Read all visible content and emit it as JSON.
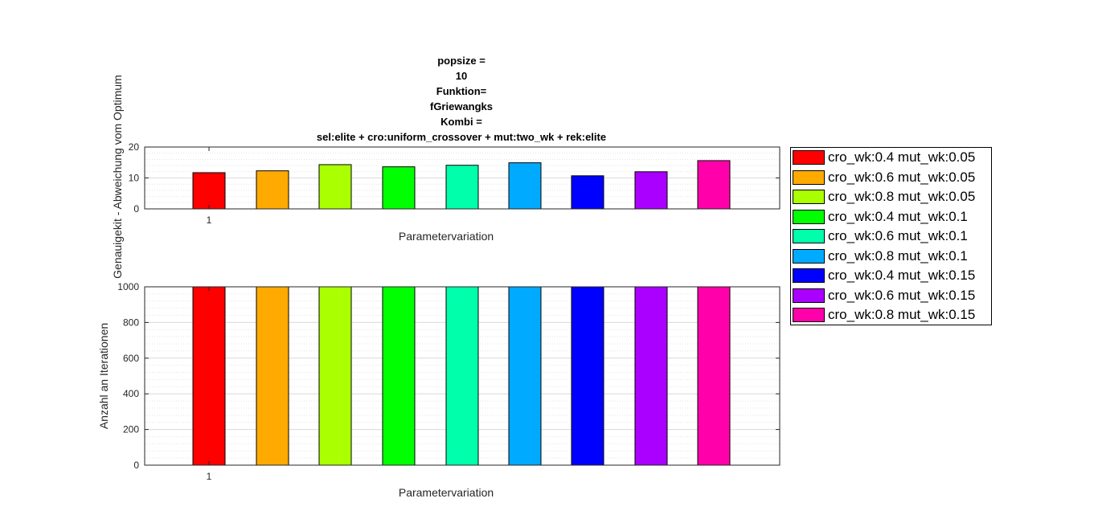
{
  "title_lines": [
    "popsize =",
    "10",
    "Funktion=",
    "fGriewangks",
    "Kombi =",
    "sel:elite + cro:uniform_crossover +  mut:two_wk +  rek:elite"
  ],
  "legend": {
    "placement": "right",
    "entries": [
      {
        "label": "cro_wk:0.4 mut_wk:0.05",
        "color": "#ff0000"
      },
      {
        "label": "cro_wk:0.6 mut_wk:0.05",
        "color": "#ffaa00"
      },
      {
        "label": "cro_wk:0.8 mut_wk:0.05",
        "color": "#aaff00"
      },
      {
        "label": "cro_wk:0.4 mut_wk:0.1",
        "color": "#00ff00"
      },
      {
        "label": "cro_wk:0.6 mut_wk:0.1",
        "color": "#00ffaa"
      },
      {
        "label": "cro_wk:0.8 mut_wk:0.1",
        "color": "#00aaff"
      },
      {
        "label": "cro_wk:0.4 mut_wk:0.15",
        "color": "#0000ff"
      },
      {
        "label": "cro_wk:0.6 mut_wk:0.15",
        "color": "#aa00ff"
      },
      {
        "label": "cro_wk:0.8 mut_wk:0.15",
        "color": "#ff00aa"
      }
    ]
  },
  "chart_data": [
    {
      "type": "bar",
      "categories": [
        "1"
      ],
      "xlabel": "Parametervariation",
      "ylabel": "Genauigekit - Abweichung vom Optimum",
      "ylim": [
        0,
        20
      ],
      "yticks": [
        "0",
        "10",
        "20"
      ],
      "grid": true,
      "series": [
        {
          "name": "cro_wk:0.4 mut_wk:0.05",
          "values": [
            11.7
          ]
        },
        {
          "name": "cro_wk:0.6 mut_wk:0.05",
          "values": [
            12.3
          ]
        },
        {
          "name": "cro_wk:0.8 mut_wk:0.05",
          "values": [
            14.3
          ]
        },
        {
          "name": "cro_wk:0.4 mut_wk:0.1",
          "values": [
            13.6
          ]
        },
        {
          "name": "cro_wk:0.6 mut_wk:0.1",
          "values": [
            14.1
          ]
        },
        {
          "name": "cro_wk:0.8 mut_wk:0.1",
          "values": [
            14.9
          ]
        },
        {
          "name": "cro_wk:0.4 mut_wk:0.15",
          "values": [
            10.7
          ]
        },
        {
          "name": "cro_wk:0.6 mut_wk:0.15",
          "values": [
            12.0
          ]
        },
        {
          "name": "cro_wk:0.8 mut_wk:0.15",
          "values": [
            15.6
          ]
        }
      ]
    },
    {
      "type": "bar",
      "categories": [
        "1"
      ],
      "xlabel": "Parametervariation",
      "ylabel": "Anzahl an Iterationen",
      "ylim": [
        0,
        1000
      ],
      "yticks": [
        "0",
        "200",
        "400",
        "600",
        "800",
        "1000"
      ],
      "grid": true,
      "series": [
        {
          "name": "cro_wk:0.4 mut_wk:0.05",
          "values": [
            1000
          ]
        },
        {
          "name": "cro_wk:0.6 mut_wk:0.05",
          "values": [
            1000
          ]
        },
        {
          "name": "cro_wk:0.8 mut_wk:0.05",
          "values": [
            1000
          ]
        },
        {
          "name": "cro_wk:0.4 mut_wk:0.1",
          "values": [
            1000
          ]
        },
        {
          "name": "cro_wk:0.6 mut_wk:0.1",
          "values": [
            1000
          ]
        },
        {
          "name": "cro_wk:0.8 mut_wk:0.1",
          "values": [
            1000
          ]
        },
        {
          "name": "cro_wk:0.4 mut_wk:0.15",
          "values": [
            1000
          ]
        },
        {
          "name": "cro_wk:0.6 mut_wk:0.15",
          "values": [
            1000
          ]
        },
        {
          "name": "cro_wk:0.8 mut_wk:0.15",
          "values": [
            1000
          ]
        }
      ]
    }
  ]
}
